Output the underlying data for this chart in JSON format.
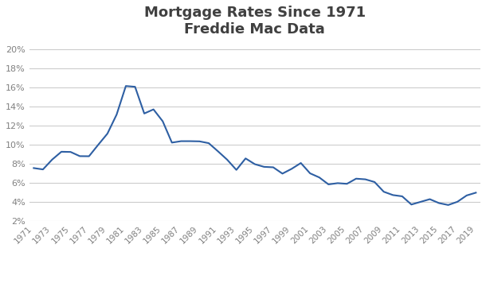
{
  "title": "Mortgage Rates Since 1971\nFreddie Mac Data",
  "line_color": "#2E5FA3",
  "background_color": "#ffffff",
  "grid_color": "#cccccc",
  "title_color": "#404040",
  "ylim": [
    0.02,
    0.205
  ],
  "yticks": [
    0.02,
    0.04,
    0.06,
    0.08,
    0.1,
    0.12,
    0.14,
    0.16,
    0.18,
    0.2
  ],
  "xticks": [
    1971,
    1973,
    1975,
    1977,
    1979,
    1981,
    1983,
    1985,
    1987,
    1989,
    1991,
    1993,
    1995,
    1997,
    1999,
    2001,
    2003,
    2005,
    2007,
    2009,
    2011,
    2013,
    2015,
    2017,
    2019
  ],
  "years": [
    1971,
    1972,
    1973,
    1974,
    1975,
    1976,
    1977,
    1978,
    1979,
    1980,
    1981,
    1982,
    1983,
    1984,
    1985,
    1986,
    1987,
    1988,
    1989,
    1990,
    1991,
    1992,
    1993,
    1994,
    1995,
    1996,
    1997,
    1998,
    1999,
    2000,
    2001,
    2002,
    2003,
    2004,
    2005,
    2006,
    2007,
    2008,
    2009,
    2010,
    2011,
    2012,
    2013,
    2014,
    2015,
    2016,
    2017,
    2018,
    2019
  ],
  "rates": [
    0.0752,
    0.0738,
    0.0841,
    0.0923,
    0.0921,
    0.0877,
    0.0876,
    0.0996,
    0.1113,
    0.1313,
    0.1612,
    0.1604,
    0.1324,
    0.1367,
    0.1243,
    0.1019,
    0.1034,
    0.1034,
    0.1032,
    0.1013,
    0.0928,
    0.084,
    0.0733,
    0.0853,
    0.0793,
    0.0765,
    0.076,
    0.0694,
    0.0744,
    0.0805,
    0.0697,
    0.0654,
    0.0581,
    0.0594,
    0.0587,
    0.0641,
    0.0634,
    0.0606,
    0.0504,
    0.0469,
    0.0456,
    0.037,
    0.0398,
    0.0426,
    0.0385,
    0.0365,
    0.0399,
    0.0465,
    0.0494
  ],
  "xlim": [
    1970.5,
    2019.5
  ]
}
